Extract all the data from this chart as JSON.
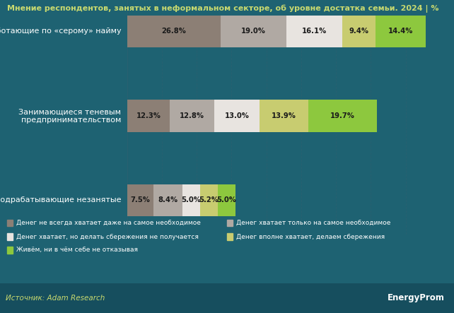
{
  "title": "Мнение респондентов, занятых в неформальном секторе, об уровне достатка семьи. 2024 | %",
  "background_color": "#1e6272",
  "bar_height": 0.42,
  "categories": [
    "Работающие по «серому» найму",
    "Занимающиеся теневым\nпредпринимательством",
    "Подрабатывающие незанятые"
  ],
  "series": [
    {
      "label": "Денег не всегда хватает даже на самое необходимое",
      "color": "#8c7f75",
      "values": [
        26.8,
        12.3,
        7.5
      ]
    },
    {
      "label": "Денег хватает только на самое необходимое",
      "color": "#b0a9a3",
      "values": [
        19.0,
        12.8,
        8.4
      ]
    },
    {
      "label": "Денег хватает, но делать сбережения не получается",
      "color": "#e8e4e0",
      "values": [
        16.1,
        13.0,
        5.0
      ]
    },
    {
      "label": "Денег вполне хватает, делаем сбережения",
      "color": "#c8cc70",
      "values": [
        9.4,
        13.9,
        5.2
      ]
    },
    {
      "label": "Живём, ни в чём себе не отказывая",
      "color": "#8dc83e",
      "values": [
        14.4,
        19.7,
        5.0
      ]
    }
  ],
  "source_text": "Источник: Adam Research",
  "energyprom_text": "EnergyProm",
  "title_color": "#c8d96f",
  "grid_color": "#286070",
  "footer_bg": "#164e5e",
  "text_color": "#ffffff",
  "label_color": "#1a1a1a",
  "xlim": 90,
  "grid_ticks": [
    10,
    20,
    30,
    40,
    50,
    60,
    70,
    80
  ]
}
